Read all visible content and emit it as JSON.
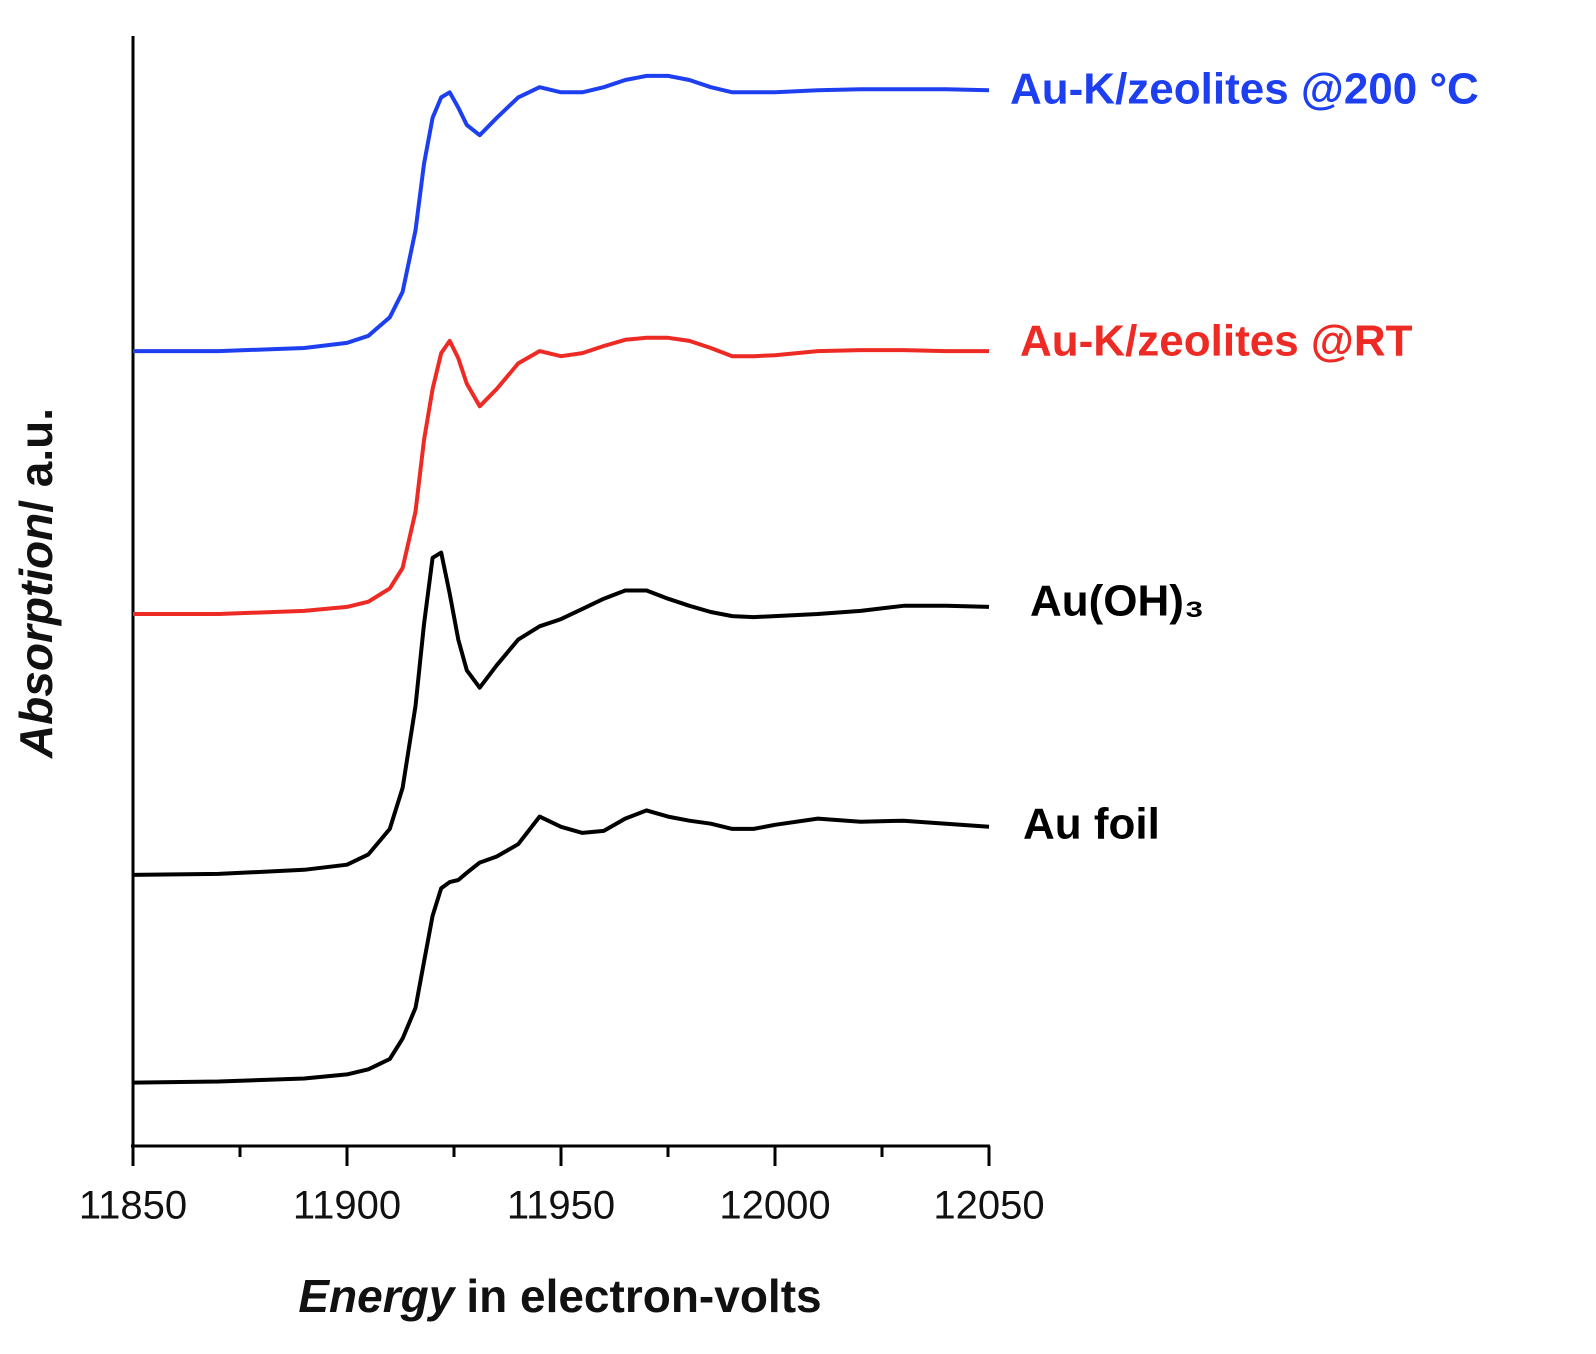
{
  "chart_data": {
    "type": "line",
    "xlabel": [
      "Energy",
      "in electron-volts"
    ],
    "ylabel": [
      "Absorption",
      "/ a.u."
    ],
    "x": [
      11850,
      11870,
      11890,
      11900,
      11905,
      11910,
      11913,
      11916,
      11918,
      11920,
      11922,
      11924,
      11926,
      11928,
      11931,
      11935,
      11940,
      11945,
      11950,
      11955,
      11960,
      11965,
      11970,
      11975,
      11980,
      11985,
      11990,
      11995,
      12000,
      12010,
      12020,
      12030,
      12040,
      12050
    ],
    "xlim": [
      11850,
      12050
    ],
    "xticks": [
      11850,
      11900,
      11950,
      12000,
      12050
    ],
    "xminorticks": [
      11875,
      11925,
      11975,
      12025
    ],
    "ylim": [
      0,
      108.5
    ],
    "series": [
      {
        "name": "Au foil",
        "color": "#000000",
        "values": [
          6.2,
          6.3,
          6.6,
          7.0,
          7.5,
          8.5,
          10.5,
          13.5,
          18.0,
          22.5,
          25.2,
          25.8,
          26.0,
          26.7,
          27.7,
          28.3,
          29.5,
          32.2,
          31.2,
          30.6,
          30.8,
          32.0,
          32.8,
          32.2,
          31.8,
          31.5,
          31.0,
          31.0,
          31.4,
          32.0,
          31.7,
          31.8,
          31.5,
          31.2
        ]
      },
      {
        "name": "Au(OH)₃",
        "color": "#000000",
        "values": [
          26.5,
          26.6,
          27.0,
          27.5,
          28.5,
          31.0,
          35.0,
          43.0,
          51.0,
          57.5,
          58.0,
          54.0,
          49.5,
          46.5,
          44.8,
          47.0,
          49.5,
          50.8,
          51.5,
          52.5,
          53.5,
          54.3,
          54.3,
          53.5,
          52.8,
          52.2,
          51.8,
          51.7,
          51.8,
          52.0,
          52.3,
          52.8,
          52.8,
          52.7
        ]
      },
      {
        "name": "Au-K/zeolites @RT",
        "color": "#ee2a24",
        "values": [
          52.0,
          52.0,
          52.3,
          52.7,
          53.2,
          54.5,
          56.5,
          62.0,
          69.0,
          74.0,
          77.5,
          78.7,
          77.0,
          74.5,
          72.3,
          74.0,
          76.5,
          77.7,
          77.2,
          77.5,
          78.2,
          78.8,
          79.0,
          79.0,
          78.7,
          78.0,
          77.2,
          77.2,
          77.3,
          77.7,
          77.8,
          77.8,
          77.7,
          77.7
        ]
      },
      {
        "name": "Au-K/zeolites @200 °C",
        "color": "#1d3ff0",
        "values": [
          77.7,
          77.7,
          78.0,
          78.5,
          79.2,
          81.0,
          83.5,
          89.5,
          96.0,
          100.5,
          102.5,
          103.0,
          101.5,
          99.8,
          98.8,
          100.5,
          102.5,
          103.5,
          103.0,
          103.0,
          103.5,
          104.2,
          104.6,
          104.6,
          104.2,
          103.5,
          103.0,
          103.0,
          103.0,
          103.2,
          103.3,
          103.3,
          103.3,
          103.2
        ]
      }
    ]
  }
}
